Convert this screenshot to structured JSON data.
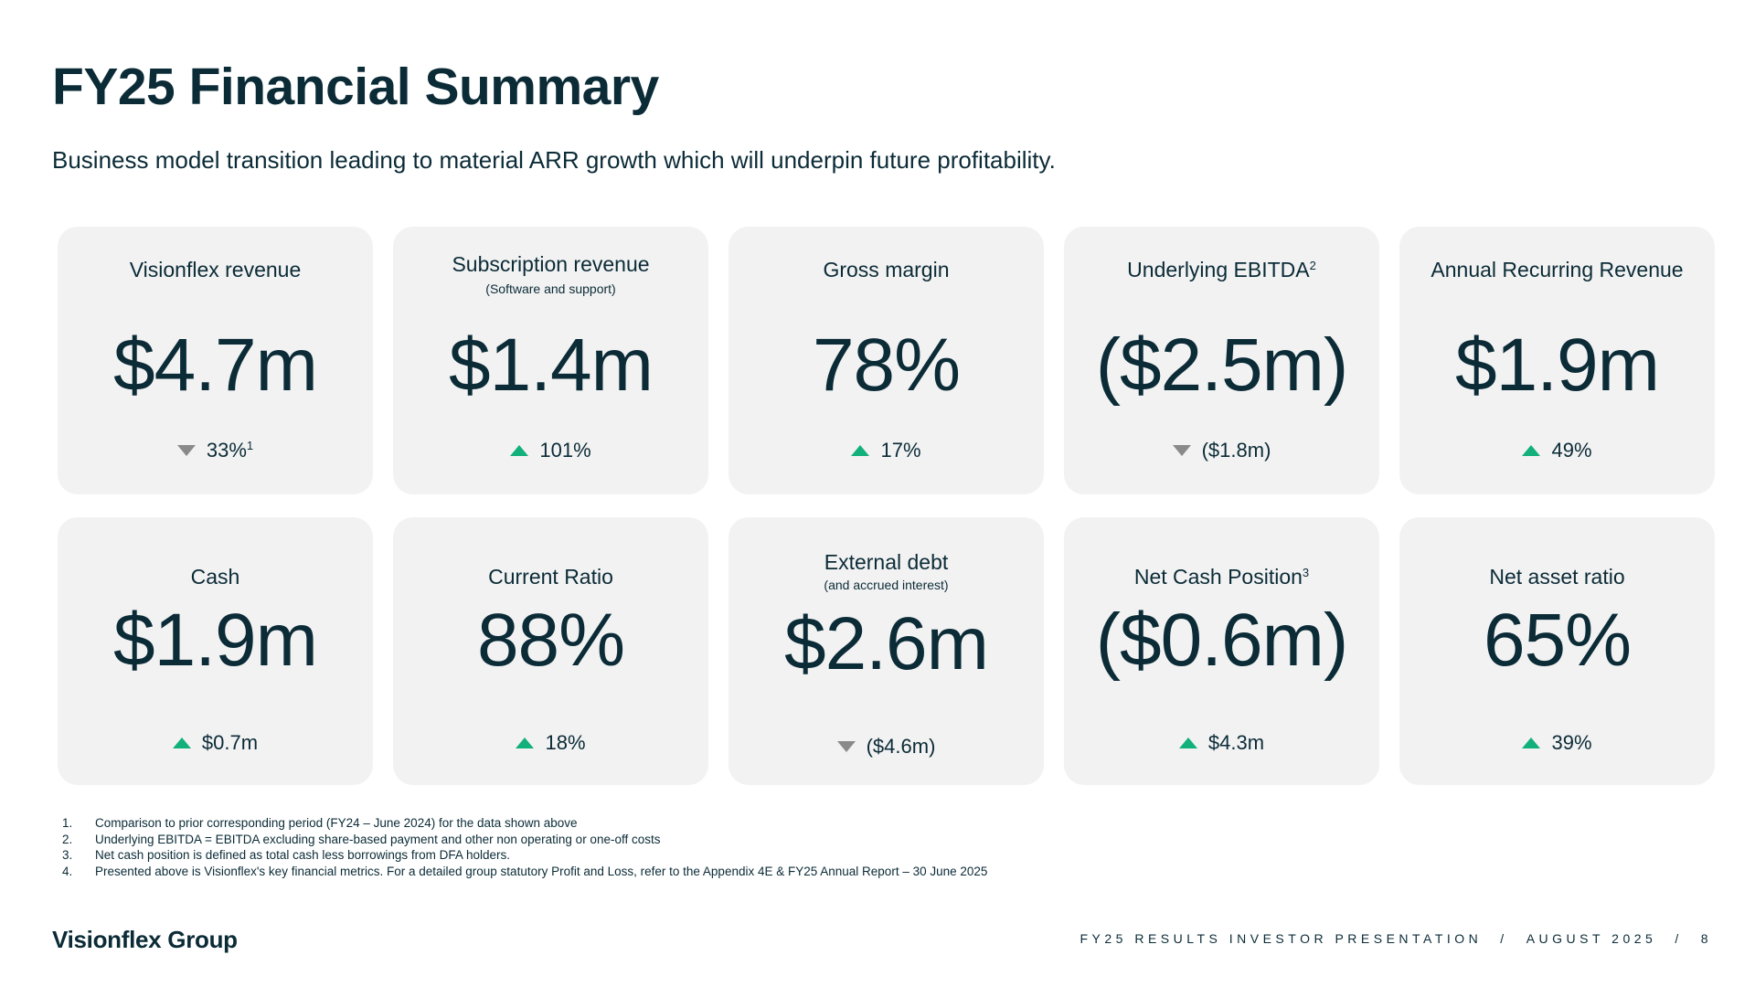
{
  "header": {
    "title": "FY25 Financial Summary",
    "subtitle": "Business model transition leading to material ARR growth which will underpin future profitability."
  },
  "cards": [
    {
      "label": "Visionflex revenue",
      "label_sup": "",
      "sub": "",
      "value": "$4.7m",
      "change": "33%",
      "change_sup": "1",
      "direction": "down"
    },
    {
      "label": "Subscription revenue",
      "label_sup": "",
      "sub": "(Software and support)",
      "value": "$1.4m",
      "change": "101%",
      "change_sup": "",
      "direction": "up"
    },
    {
      "label": "Gross margin",
      "label_sup": "",
      "sub": "",
      "value": "78%",
      "change": "17%",
      "change_sup": "",
      "direction": "up"
    },
    {
      "label": "Underlying EBITDA",
      "label_sup": "2",
      "sub": "",
      "value": "($2.5m)",
      "change": "($1.8m)",
      "change_sup": "",
      "direction": "down"
    },
    {
      "label": "Annual Recurring Revenue",
      "label_sup": "",
      "sub": "",
      "value": "$1.9m",
      "change": "49%",
      "change_sup": "",
      "direction": "up"
    },
    {
      "label": "Cash",
      "label_sup": "",
      "sub": "",
      "value": "$1.9m",
      "change": "$0.7m",
      "change_sup": "",
      "direction": "up"
    },
    {
      "label": "Current Ratio",
      "label_sup": "",
      "sub": "",
      "value": "88%",
      "change": "18%",
      "change_sup": "",
      "direction": "up"
    },
    {
      "label": "External debt",
      "label_sup": "",
      "sub": "(and accrued interest)",
      "value": "$2.6m",
      "change": "($4.6m)",
      "change_sup": "",
      "direction": "down"
    },
    {
      "label": "Net Cash Position",
      "label_sup": "3",
      "sub": "",
      "value": "($0.6m)",
      "change": "$4.3m",
      "change_sup": "",
      "direction": "up"
    },
    {
      "label": "Net asset ratio",
      "label_sup": "",
      "sub": "",
      "value": "65%",
      "change": "39%",
      "change_sup": "",
      "direction": "up"
    }
  ],
  "colors": {
    "up": "#12b07a",
    "down": "#8a8a8a",
    "text": "#0b2b37",
    "card_bg": "#f2f2f2"
  },
  "footnotes": [
    {
      "num": "1.",
      "text": "Comparison to prior corresponding period (FY24 – June 2024) for the data shown above"
    },
    {
      "num": "2.",
      "text": "Underlying EBITDA = EBITDA excluding share-based payment and other non operating or one-off costs"
    },
    {
      "num": "3.",
      "text": "Net cash position is defined as total cash less borrowings from DFA holders."
    },
    {
      "num": "4.",
      "text": "Presented above is Visionflex's key financial metrics. For a detailed group statutory Profit and Loss, refer to the Appendix 4E & FY25 Annual Report – 30 June 2025"
    }
  ],
  "footer": {
    "logo": "Visionflex Group",
    "presentation": "FY25 RESULTS INVESTOR PRESENTATION",
    "sep1": "/",
    "date": "AUGUST 2025",
    "sep2": "/",
    "page": "8"
  }
}
